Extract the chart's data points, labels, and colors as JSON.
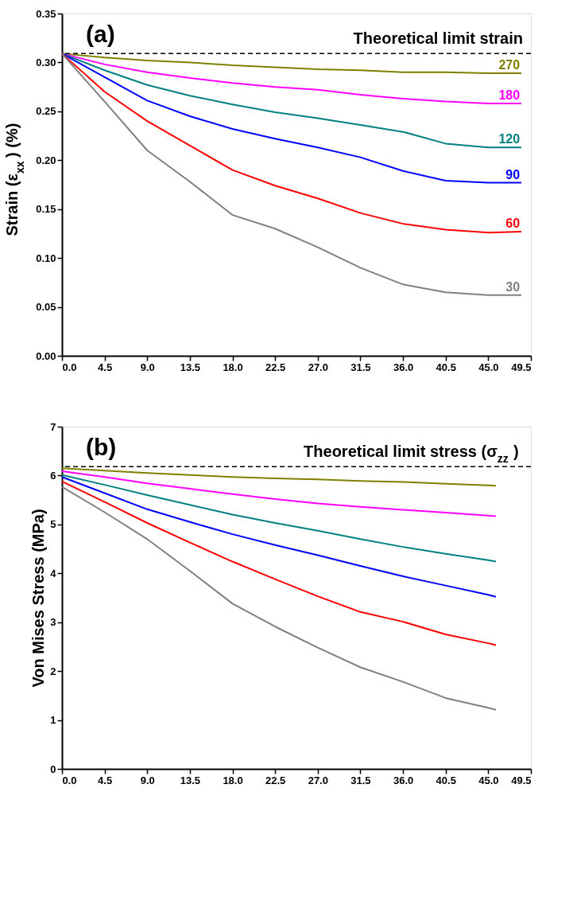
{
  "chart_data": [
    {
      "type": "line",
      "annotations": [
        "(a)"
      ],
      "ylabel": "Strain (ε$_{xx}$) (%)",
      "xlim": [
        0,
        49.5
      ],
      "xticks": [
        {
          "value": 0,
          "label": "0.0"
        },
        {
          "value": 4.5,
          "label": "4.5"
        },
        {
          "value": 9,
          "label": "9.0"
        },
        {
          "value": 13.5,
          "label": "13.5"
        },
        {
          "value": 18,
          "label": "18.0"
        },
        {
          "value": 22.5,
          "label": "22.5"
        },
        {
          "value": 27,
          "label": "27.0"
        },
        {
          "value": 31.5,
          "label": "31.5"
        },
        {
          "value": 36,
          "label": "36.0"
        },
        {
          "value": 40.5,
          "label": "40.5"
        },
        {
          "value": 45,
          "label": "45.0"
        },
        {
          "value": 49.5,
          "label": "49.5"
        }
      ],
      "ylim": [
        0,
        0.35
      ],
      "yticks": [
        {
          "value": 0,
          "label": "0.00"
        },
        0.05,
        {
          "value": 0.1,
          "label": "0.10"
        },
        0.15,
        {
          "value": 0.2,
          "label": "0.20"
        },
        0.25,
        {
          "value": 0.3,
          "label": "0.30"
        },
        0.35
      ],
      "x": [
        0,
        4.5,
        9,
        13.5,
        18,
        22.5,
        27,
        31.5,
        36,
        40.5,
        45,
        48.5
      ],
      "series": [
        {
          "name": "270",
          "color": "#808000",
          "values": [
            0.309,
            0.305,
            0.302,
            0.3,
            0.297,
            0.295,
            0.293,
            0.292,
            0.29,
            0.29,
            0.289,
            0.289
          ]
        },
        {
          "name": "180",
          "color": "#ff00ff",
          "values": [
            0.309,
            0.298,
            0.29,
            0.284,
            0.279,
            0.275,
            0.272,
            0.267,
            0.263,
            0.26,
            0.258,
            0.258
          ]
        },
        {
          "name": "120",
          "color": "#008080",
          "values": [
            0.309,
            0.292,
            0.277,
            0.266,
            0.257,
            0.249,
            0.243,
            0.236,
            0.229,
            0.217,
            0.213,
            0.213
          ]
        },
        {
          "name": "90",
          "color": "#0000ff",
          "values": [
            0.309,
            0.285,
            0.261,
            0.245,
            0.232,
            0.222,
            0.213,
            0.203,
            0.189,
            0.179,
            0.177,
            0.177
          ]
        },
        {
          "name": "60",
          "color": "#ff0000",
          "values": [
            0.309,
            0.27,
            0.24,
            0.215,
            0.19,
            0.174,
            0.161,
            0.146,
            0.135,
            0.129,
            0.126,
            0.127
          ]
        },
        {
          "name": "30",
          "color": "#808080",
          "values": [
            0.309,
            0.26,
            0.21,
            0.178,
            0.144,
            0.13,
            0.111,
            0.09,
            0.073,
            0.065,
            0.062,
            0.062
          ]
        }
      ],
      "ref_lines": [
        {
          "axis": "y",
          "value": 0.309,
          "label": "Theoretical limit strain",
          "line_style": "dashed",
          "color": "#000000"
        }
      ],
      "grid": false
    },
    {
      "type": "line",
      "annotations": [
        "(b)"
      ],
      "ylabel": "Von Mises Stress (MPa)",
      "xlim": [
        0,
        49.5
      ],
      "xticks": [
        {
          "value": 0,
          "label": "0.0"
        },
        {
          "value": 4.5,
          "label": "4.5"
        },
        {
          "value": 9,
          "label": "9.0"
        },
        {
          "value": 13.5,
          "label": "13.5"
        },
        {
          "value": 18,
          "label": "18.0"
        },
        {
          "value": 22.5,
          "label": "22.5"
        },
        {
          "value": 27,
          "label": "27.0"
        },
        {
          "value": 31.5,
          "label": "31.5"
        },
        {
          "value": 36,
          "label": "36.0"
        },
        {
          "value": 40.5,
          "label": "40.5"
        },
        {
          "value": 45,
          "label": "45.0"
        },
        {
          "value": 49.5,
          "label": "49.5"
        }
      ],
      "ylim": [
        0,
        7
      ],
      "yticks": [
        0,
        1,
        2,
        3,
        4,
        5,
        6,
        7
      ],
      "x": [
        0,
        4.5,
        9,
        13.5,
        18,
        22.5,
        27,
        31.5,
        36,
        40.5,
        45,
        45.8
      ],
      "series": [
        {
          "color": "#808000",
          "values": [
            6.15,
            6.1,
            6.05,
            6.01,
            5.97,
            5.94,
            5.92,
            5.89,
            5.87,
            5.83,
            5.8,
            5.79
          ]
        },
        {
          "color": "#ff00ff",
          "values": [
            6.09,
            5.97,
            5.84,
            5.73,
            5.62,
            5.52,
            5.43,
            5.36,
            5.3,
            5.24,
            5.18,
            5.17
          ]
        },
        {
          "color": "#008080",
          "values": [
            6.01,
            5.81,
            5.6,
            5.4,
            5.2,
            5.03,
            4.87,
            4.7,
            4.54,
            4.4,
            4.27,
            4.24
          ]
        },
        {
          "color": "#0000ff",
          "values": [
            5.97,
            5.64,
            5.31,
            5.05,
            4.8,
            4.58,
            4.37,
            4.15,
            3.94,
            3.75,
            3.56,
            3.52
          ]
        },
        {
          "color": "#ff0000",
          "values": [
            5.88,
            5.46,
            5.03,
            4.63,
            4.24,
            3.88,
            3.53,
            3.21,
            3.01,
            2.75,
            2.57,
            2.53
          ]
        },
        {
          "color": "#808080",
          "values": [
            5.77,
            5.25,
            4.7,
            4.05,
            3.38,
            2.91,
            2.48,
            2.08,
            1.78,
            1.45,
            1.25,
            1.21
          ]
        }
      ],
      "ref_lines": [
        {
          "axis": "y",
          "value": 6.18,
          "label": "Theoretical limit stress (σ$_{zz}$)",
          "line_style": "dashed",
          "color": "#000000"
        }
      ],
      "grid": false
    }
  ]
}
